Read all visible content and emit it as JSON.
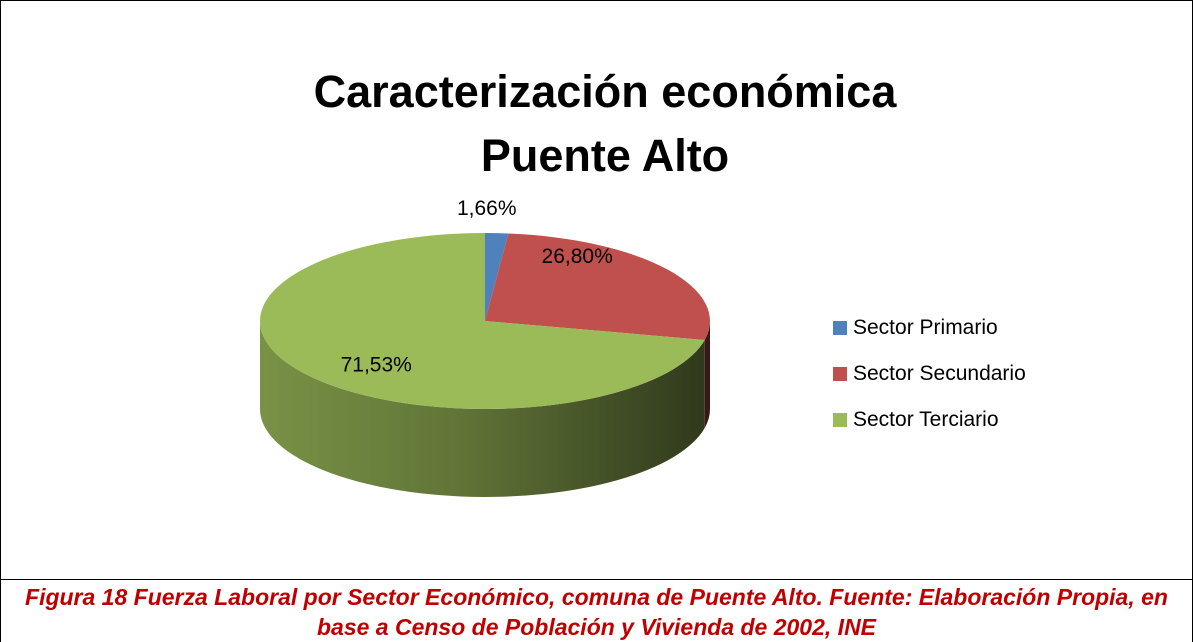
{
  "chart_data": {
    "type": "pie",
    "title": "Caracterización económica Puente Alto",
    "categories": [
      "Sector Primario",
      "Sector Secundario",
      "Sector Terciario"
    ],
    "values": [
      1.66,
      26.8,
      71.53
    ],
    "data_labels": [
      "1,66%",
      "26,80%",
      "71,53%"
    ],
    "colors": [
      "#4f81bd",
      "#c0504d",
      "#9bbb59"
    ],
    "legend_position": "right",
    "style": "3d"
  },
  "caption": "Figura 18 Fuerza Laboral por Sector Económico, comuna de Puente Alto. Fuente: Elaboración Propia, en base a Censo de Población y Vivienda de 2002, INE"
}
